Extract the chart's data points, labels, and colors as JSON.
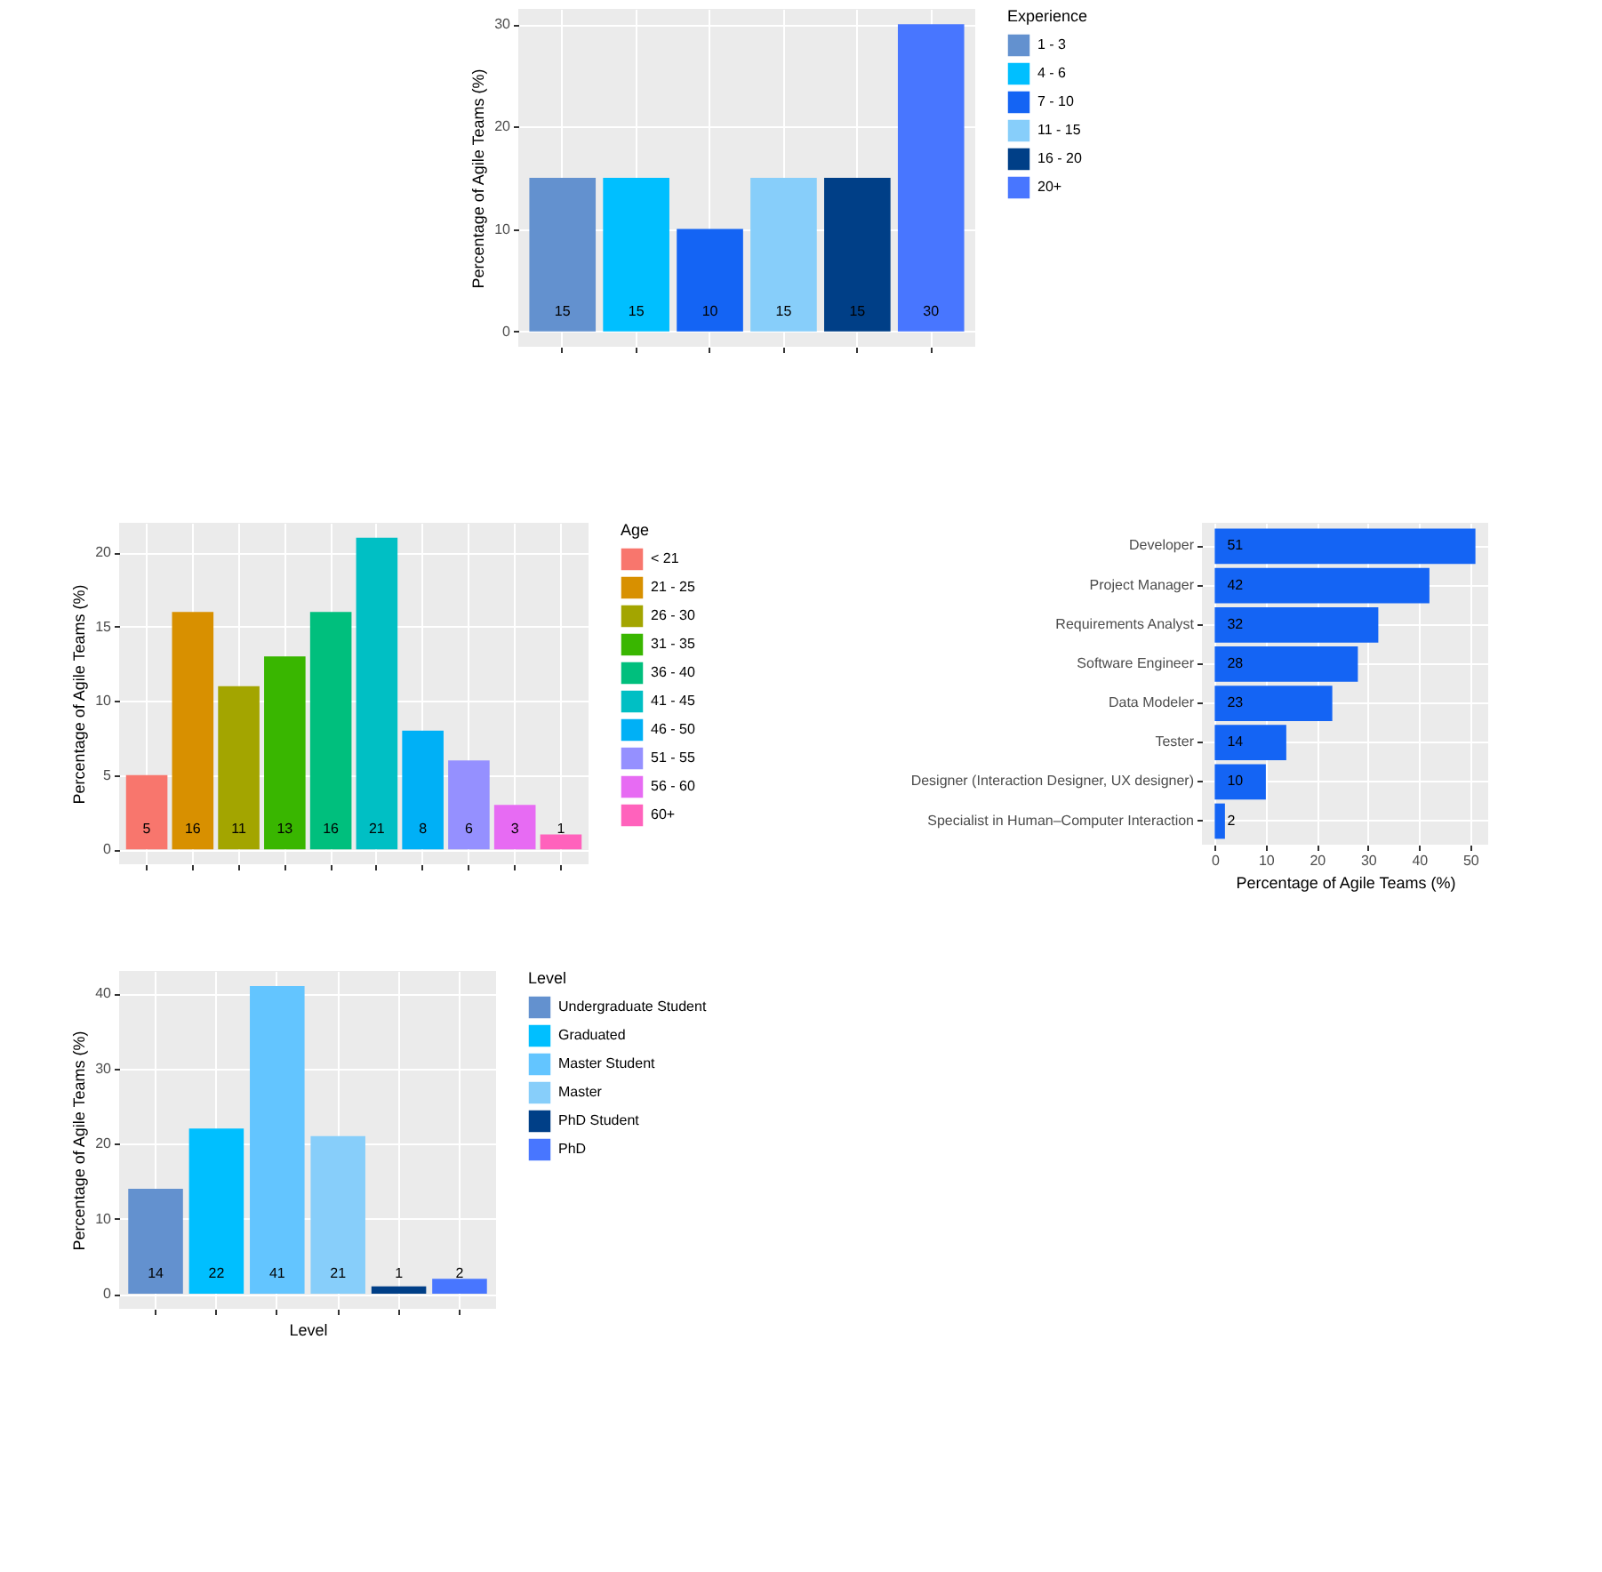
{
  "chart_data": [
    {
      "type": "bar",
      "ylabel": "Percentage of Agile Teams (%)",
      "legend_title": "Experience",
      "categories": [
        null,
        null,
        null,
        null,
        null,
        null
      ],
      "series": [
        {
          "name": "1 - 3",
          "color": "#6391cf",
          "values": [
            15,
            null,
            null,
            null,
            null,
            null
          ]
        },
        {
          "name": "4 - 6",
          "color": "#00bfff",
          "values": [
            null,
            15,
            null,
            null,
            null,
            null
          ]
        },
        {
          "name": "7 - 10",
          "color": "#1464f4",
          "values": [
            null,
            null,
            10,
            null,
            null,
            null
          ]
        },
        {
          "name": "11 - 15",
          "color": "#87cefa",
          "values": [
            null,
            null,
            null,
            15,
            null,
            null
          ]
        },
        {
          "name": "16 - 20",
          "color": "#003f87",
          "values": [
            null,
            null,
            null,
            null,
            15,
            null
          ]
        },
        {
          "name": "20+",
          "color": "#4876ff",
          "values": [
            null,
            null,
            null,
            null,
            null,
            30
          ]
        }
      ],
      "ylim": [
        -1.5,
        31.5
      ],
      "yticks": [
        0,
        10,
        20,
        30
      ],
      "grid": true,
      "legend": "right",
      "tick_labels": "y",
      "data_labels": true
    },
    {
      "type": "bar",
      "ylabel": "Percentage of Agile Teams (%)",
      "legend_title": "Age",
      "categories": [
        null,
        null,
        null,
        null,
        null,
        null,
        null,
        null,
        null,
        null
      ],
      "series": [
        {
          "name": "< 21",
          "color": "#f8766d",
          "values": [
            5,
            null,
            null,
            null,
            null,
            null,
            null,
            null,
            null,
            null
          ]
        },
        {
          "name": "21 - 25",
          "color": "#d89000",
          "values": [
            null,
            16,
            null,
            null,
            null,
            null,
            null,
            null,
            null,
            null
          ]
        },
        {
          "name": "26 - 30",
          "color": "#a3a500",
          "values": [
            null,
            null,
            11,
            null,
            null,
            null,
            null,
            null,
            null,
            null
          ]
        },
        {
          "name": "31 - 35",
          "color": "#39b600",
          "values": [
            null,
            null,
            null,
            13,
            null,
            null,
            null,
            null,
            null,
            null
          ]
        },
        {
          "name": "36 - 40",
          "color": "#00bf7d",
          "values": [
            null,
            null,
            null,
            null,
            16,
            null,
            null,
            null,
            null,
            null
          ]
        },
        {
          "name": "41 - 45",
          "color": "#00bfc4",
          "values": [
            null,
            null,
            null,
            null,
            null,
            21,
            null,
            null,
            null,
            null
          ]
        },
        {
          "name": "46 - 50",
          "color": "#00b0f6",
          "values": [
            null,
            null,
            null,
            null,
            null,
            null,
            8,
            null,
            null,
            null
          ]
        },
        {
          "name": "51 - 55",
          "color": "#9590ff",
          "values": [
            null,
            null,
            null,
            null,
            null,
            null,
            null,
            6,
            null,
            null
          ]
        },
        {
          "name": "56 - 60",
          "color": "#e76bf3",
          "values": [
            null,
            null,
            null,
            null,
            null,
            null,
            null,
            null,
            3,
            null
          ]
        },
        {
          "name": "60+",
          "color": "#ff62bc",
          "values": [
            null,
            null,
            null,
            null,
            null,
            null,
            null,
            null,
            null,
            1
          ]
        }
      ],
      "ylim": [
        -1,
        22
      ],
      "yticks": [
        0,
        5,
        10,
        15,
        20
      ],
      "grid": true,
      "legend": "right",
      "tick_labels": "y",
      "data_labels": true
    },
    {
      "type": "bar",
      "orientation": "horizontal",
      "xlabel": "Percentage of Agile Teams (%)",
      "categories": [
        "Developer",
        "Project Manager",
        "Requirements Analyst",
        "Software Engineer",
        "Data Modeler",
        "Tester",
        "Designer (Interaction Designer, UX designer)",
        "Specialist in Human–Computer Interaction"
      ],
      "values": [
        51,
        42,
        32,
        28,
        23,
        14,
        10,
        2
      ],
      "color": "#1464f4",
      "xlim": [
        -2.5,
        53.5
      ],
      "xticks": [
        0,
        10,
        20,
        30,
        40,
        50
      ],
      "grid": true,
      "data_labels": true
    },
    {
      "type": "bar",
      "ylabel": "Percentage of Agile Teams (%)",
      "xlabel": "Level",
      "legend_title": "Level",
      "categories": [
        null,
        null,
        null,
        null,
        null,
        null
      ],
      "series": [
        {
          "name": "Undergraduate Student",
          "color": "#6391cf",
          "values": [
            14,
            null,
            null,
            null,
            null,
            null
          ]
        },
        {
          "name": "Graduated",
          "color": "#00bfff",
          "values": [
            null,
            22,
            null,
            null,
            null,
            null
          ]
        },
        {
          "name": "Master Student",
          "color": "#63c5ff",
          "values": [
            null,
            null,
            41,
            null,
            null,
            null
          ]
        },
        {
          "name": "Master",
          "color": "#87cefa",
          "values": [
            null,
            null,
            null,
            21,
            null,
            null
          ]
        },
        {
          "name": "PhD Student",
          "color": "#003f87",
          "values": [
            null,
            null,
            null,
            null,
            1,
            null
          ]
        },
        {
          "name": "PhD",
          "color": "#4876ff",
          "values": [
            null,
            null,
            null,
            null,
            null,
            2
          ]
        }
      ],
      "ylim": [
        -2,
        43
      ],
      "yticks": [
        0,
        10,
        20,
        30,
        40
      ],
      "grid": true,
      "legend": "right",
      "tick_labels": "y",
      "data_labels": true
    }
  ]
}
